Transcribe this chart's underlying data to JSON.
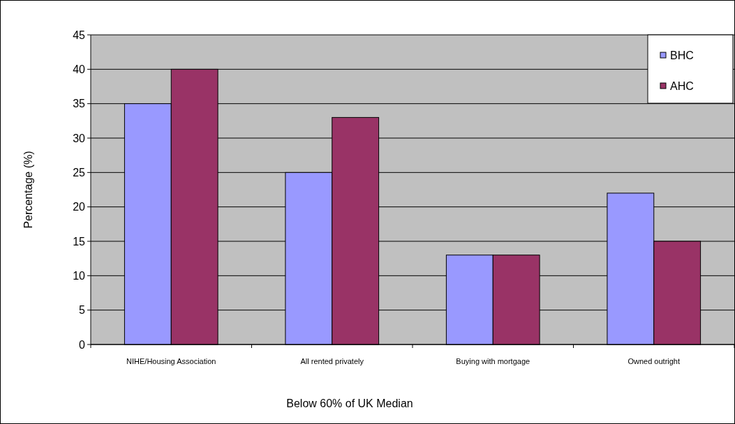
{
  "chart_data": {
    "type": "bar",
    "xlabel": "Below 60% of UK Median",
    "ylabel": "Percentage (%)",
    "categories": [
      "NIHE/Housing Association",
      "All rented privately",
      "Buying with mortgage",
      "Owned outright"
    ],
    "series": [
      {
        "name": "BHC",
        "color": "#9999ff",
        "values": [
          35,
          25,
          13,
          22
        ]
      },
      {
        "name": "AHC",
        "color": "#993366",
        "values": [
          40,
          33,
          13,
          15
        ]
      }
    ],
    "ylim": [
      0,
      45
    ],
    "yticks": [
      0,
      5,
      10,
      15,
      20,
      25,
      30,
      35,
      40,
      45
    ],
    "grid": "y",
    "legend": "top right"
  }
}
